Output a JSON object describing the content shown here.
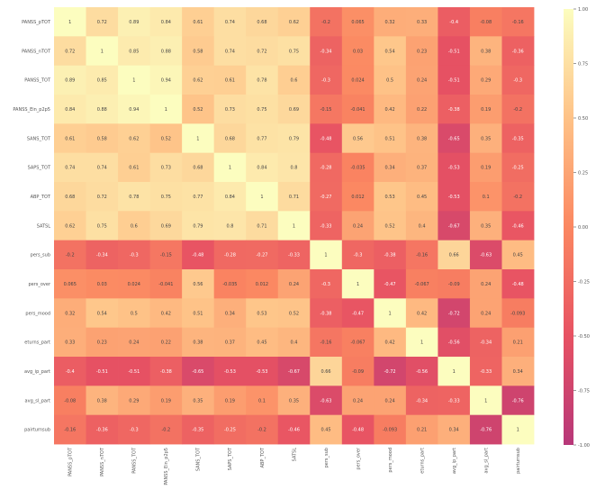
{
  "chart_data": {
    "type": "heatmap",
    "variables": [
      "PANSS_pTOT",
      "PANSS_nTOT",
      "PANSS_TOT",
      "PANSS_Ein_p2p5",
      "SANS_TOT",
      "SAPS_TOT",
      "ABP_TOT",
      "SATSL",
      "pers_sub",
      "pers_over",
      "pers_mood",
      "eturns_part",
      "avg_ip_part",
      "avg_sl_part",
      "pairturnsub"
    ],
    "matrix": [
      [
        1,
        0.72,
        0.89,
        0.84,
        0.61,
        0.74,
        0.68,
        0.62,
        -0.2,
        0.065,
        0.32,
        0.33,
        -0.4,
        -0.08,
        -0.16
      ],
      [
        0.72,
        1,
        0.85,
        0.88,
        0.58,
        0.74,
        0.72,
        0.75,
        -0.34,
        0.03,
        0.54,
        0.23,
        -0.51,
        0.38,
        -0.36
      ],
      [
        0.89,
        0.85,
        1,
        0.94,
        0.62,
        0.61,
        0.78,
        0.6,
        -0.3,
        0.024,
        0.5,
        0.24,
        -0.51,
        0.29,
        -0.3
      ],
      [
        0.84,
        0.88,
        0.94,
        1,
        0.52,
        0.73,
        0.75,
        0.69,
        -0.15,
        -0.041,
        0.42,
        0.22,
        -0.38,
        0.19,
        -0.2
      ],
      [
        0.61,
        0.58,
        0.62,
        0.52,
        1,
        0.68,
        0.77,
        0.79,
        -0.48,
        0.56,
        0.51,
        0.38,
        -0.65,
        0.35,
        -0.35
      ],
      [
        0.74,
        0.74,
        0.61,
        0.73,
        0.68,
        1,
        0.84,
        0.8,
        -0.28,
        -0.035,
        0.34,
        0.37,
        -0.53,
        0.19,
        -0.25
      ],
      [
        0.68,
        0.72,
        0.78,
        0.75,
        0.77,
        0.84,
        1,
        0.71,
        -0.27,
        0.012,
        0.53,
        0.45,
        -0.53,
        0.1,
        -0.2
      ],
      [
        0.62,
        0.75,
        0.6,
        0.69,
        0.79,
        0.8,
        0.71,
        1,
        -0.33,
        0.24,
        0.52,
        0.4,
        -0.67,
        0.35,
        -0.46
      ],
      [
        -0.2,
        -0.34,
        -0.3,
        -0.15,
        -0.48,
        -0.28,
        -0.27,
        -0.33,
        1,
        -0.3,
        -0.38,
        -0.16,
        0.66,
        -0.63,
        0.45
      ],
      [
        0.065,
        0.03,
        0.024,
        -0.041,
        0.56,
        -0.035,
        0.012,
        0.24,
        -0.3,
        1,
        -0.47,
        -0.067,
        -0.09,
        0.24,
        -0.48
      ],
      [
        0.32,
        0.54,
        0.5,
        0.42,
        0.51,
        0.34,
        0.53,
        0.52,
        -0.38,
        -0.47,
        1,
        0.42,
        -0.72,
        0.24,
        -0.093
      ],
      [
        0.33,
        0.23,
        0.24,
        0.22,
        0.38,
        0.37,
        0.45,
        0.4,
        -0.16,
        -0.067,
        0.42,
        1,
        -0.56,
        -0.34,
        0.21
      ],
      [
        -0.4,
        -0.51,
        -0.51,
        -0.38,
        -0.65,
        -0.53,
        -0.53,
        -0.67,
        0.66,
        -0.09,
        -0.72,
        -0.56,
        1,
        -0.33,
        0.34
      ],
      [
        -0.08,
        0.38,
        0.29,
        0.19,
        0.35,
        0.19,
        0.1,
        0.35,
        -0.63,
        0.24,
        0.24,
        -0.34,
        -0.33,
        1,
        -0.76
      ],
      [
        -0.16,
        -0.36,
        -0.3,
        -0.2,
        -0.35,
        -0.25,
        -0.2,
        -0.46,
        0.45,
        -0.48,
        -0.093,
        0.21,
        0.34,
        -0.76,
        1
      ]
    ],
    "labels": [
      [
        "1",
        "0.72",
        "0.89",
        "0.84",
        "0.61",
        "0.74",
        "0.68",
        "0.62",
        "-0.2",
        "0.065",
        "0.32",
        "0.33",
        "-0.4",
        "-0.08",
        "-0.16"
      ],
      [
        "0.72",
        "1",
        "0.85",
        "0.88",
        "0.58",
        "0.74",
        "0.72",
        "0.75",
        "-0.34",
        "0.03",
        "0.54",
        "0.23",
        "-0.51",
        "0.38",
        "-0.36"
      ],
      [
        "0.89",
        "0.85",
        "1",
        "0.94",
        "0.62",
        "0.61",
        "0.78",
        "0.6",
        "-0.3",
        "0.024",
        "0.5",
        "0.24",
        "-0.51",
        "0.29",
        "-0.3"
      ],
      [
        "0.84",
        "0.88",
        "0.94",
        "1",
        "0.52",
        "0.73",
        "0.75",
        "0.69",
        "-0.15",
        "-0.041",
        "0.42",
        "0.22",
        "-0.38",
        "0.19",
        "-0.2"
      ],
      [
        "0.61",
        "0.58",
        "0.62",
        "0.52",
        "1",
        "0.68",
        "0.77",
        "0.79",
        "-0.48",
        "0.56",
        "0.51",
        "0.38",
        "-0.65",
        "0.35",
        "-0.35"
      ],
      [
        "0.74",
        "0.74",
        "0.61",
        "0.73",
        "0.68",
        "1",
        "0.84",
        "0.8",
        "-0.28",
        "-0.035",
        "0.34",
        "0.37",
        "-0.53",
        "0.19",
        "-0.25"
      ],
      [
        "0.68",
        "0.72",
        "0.78",
        "0.75",
        "0.77",
        "0.84",
        "1",
        "0.71",
        "-0.27",
        "0.012",
        "0.53",
        "0.45",
        "-0.53",
        "0.1",
        "-0.2"
      ],
      [
        "0.62",
        "0.75",
        "0.6",
        "0.69",
        "0.79",
        "0.8",
        "0.71",
        "1",
        "-0.33",
        "0.24",
        "0.52",
        "0.4",
        "-0.67",
        "0.35",
        "-0.46"
      ],
      [
        "-0.2",
        "-0.34",
        "-0.3",
        "-0.15",
        "-0.48",
        "-0.28",
        "-0.27",
        "-0.33",
        "1",
        "-0.3",
        "-0.38",
        "-0.16",
        "0.66",
        "-0.63",
        "0.45"
      ],
      [
        "0.065",
        "0.03",
        "0.024",
        "-0.041",
        "0.56",
        "-0.035",
        "0.012",
        "0.24",
        "-0.3",
        "1",
        "-0.47",
        "-0.067",
        "-0.09",
        "0.24",
        "-0.48"
      ],
      [
        "0.32",
        "0.54",
        "0.5",
        "0.42",
        "0.51",
        "0.34",
        "0.53",
        "0.52",
        "-0.38",
        "-0.47",
        "1",
        "0.42",
        "-0.72",
        "0.24",
        "-0.093"
      ],
      [
        "0.33",
        "0.23",
        "0.24",
        "0.22",
        "0.38",
        "0.37",
        "0.45",
        "0.4",
        "-0.16",
        "-0.067",
        "0.42",
        "1",
        "-0.56",
        "-0.34",
        "0.21"
      ],
      [
        "-0.4",
        "-0.51",
        "-0.51",
        "-0.38",
        "-0.65",
        "-0.53",
        "-0.53",
        "-0.67",
        "0.66",
        "-0.09",
        "-0.72",
        "-0.56",
        "1",
        "-0.33",
        "0.34"
      ],
      [
        "-0.08",
        "0.38",
        "0.29",
        "0.19",
        "0.35",
        "0.19",
        "0.1",
        "0.35",
        "-0.63",
        "0.24",
        "0.24",
        "-0.34",
        "-0.33",
        "1",
        "-0.76"
      ],
      [
        "-0.16",
        "-0.36",
        "-0.3",
        "-0.2",
        "-0.35",
        "-0.25",
        "-0.2",
        "-0.46",
        "0.45",
        "-0.48",
        "-0.093",
        "0.21",
        "0.34",
        "-0.76",
        "1"
      ]
    ],
    "value_range": [
      -1,
      1
    ],
    "colorbar": {
      "ticks": [
        1.0,
        0.75,
        0.5,
        0.25,
        0.0,
        -0.25,
        -0.5,
        -0.75,
        -1.0
      ],
      "tick_labels": [
        "1.00",
        "0.75",
        "0.50",
        "0.25",
        "0.00",
        "-0.25",
        "-0.50",
        "-0.75",
        "-1.00"
      ]
    },
    "colormap": [
      "#fcfdbf",
      "#fec287",
      "#fb8761",
      "#e75263",
      "#b73779"
    ],
    "grid": false,
    "legend": "colorbar-right"
  }
}
